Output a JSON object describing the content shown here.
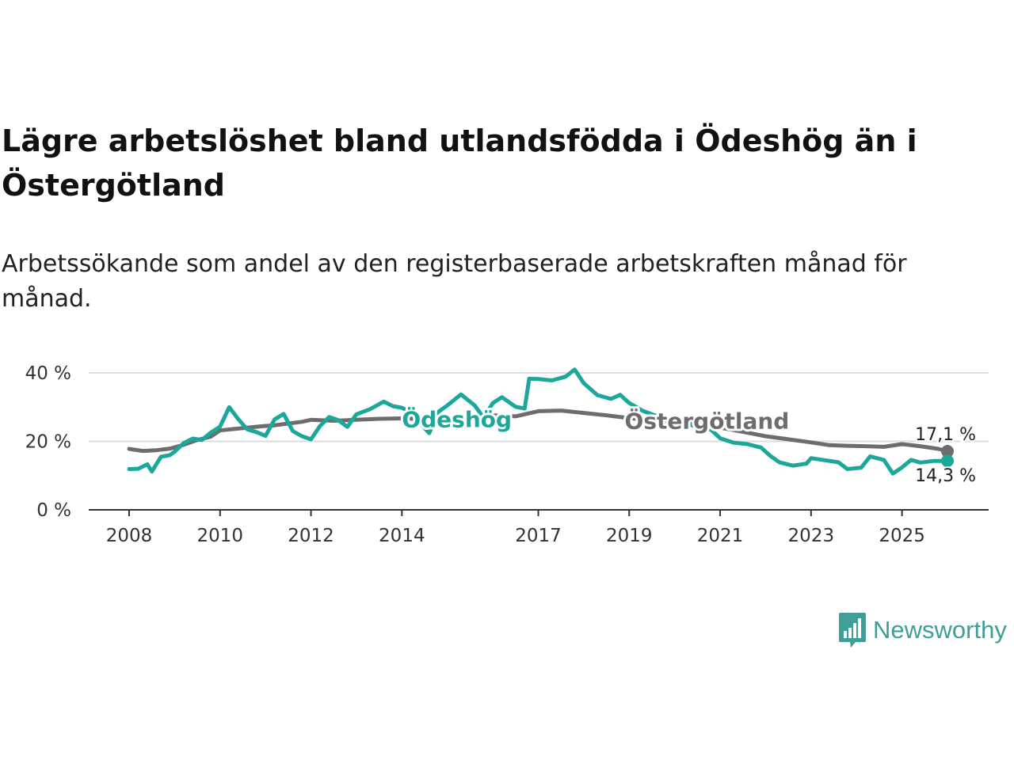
{
  "title": "Lägre arbetslöshet bland utlandsfödda i Ödeshög än i Östergötland",
  "subtitle": "Arbetssökande som andel av den registerbaserade arbetskraften månad för månad.",
  "brand": {
    "name": "Newsworthy",
    "color": "#3f9e97"
  },
  "chart_data": {
    "type": "line",
    "title": "Lägre arbetslöshet bland utlandsfödda i Ödeshög än i Östergötland",
    "xlabel": "",
    "ylabel": "",
    "xlim": [
      2008,
      2026
    ],
    "ylim": [
      0,
      40
    ],
    "y_ticks": [
      0,
      20,
      40
    ],
    "y_tick_labels": [
      "0 %",
      "20 %",
      "40 %"
    ],
    "x_ticks": [
      2008,
      2010,
      2012,
      2014,
      2017,
      2019,
      2021,
      2023,
      2025
    ],
    "x_tick_labels": [
      "2008",
      "2010",
      "2012",
      "2014",
      "2017",
      "2019",
      "2021",
      "2023",
      "2025"
    ],
    "grid": true,
    "series": [
      {
        "name": "Östergötland",
        "color": "#6d6d70",
        "end_label": "17,1 %",
        "points": [
          [
            2008.0,
            17.8
          ],
          [
            2008.3,
            17.2
          ],
          [
            2008.6,
            17.4
          ],
          [
            2008.9,
            17.9
          ],
          [
            2009.2,
            19.0
          ],
          [
            2009.5,
            20.4
          ],
          [
            2009.8,
            21.4
          ],
          [
            2010.0,
            23.2
          ],
          [
            2010.3,
            23.6
          ],
          [
            2010.6,
            24.0
          ],
          [
            2010.9,
            24.4
          ],
          [
            2011.2,
            24.7
          ],
          [
            2011.5,
            25.2
          ],
          [
            2011.8,
            25.7
          ],
          [
            2012.0,
            26.3
          ],
          [
            2012.5,
            26.0
          ],
          [
            2013.0,
            26.3
          ],
          [
            2013.5,
            26.6
          ],
          [
            2014.0,
            26.7
          ],
          [
            2014.5,
            26.5
          ],
          [
            2015.0,
            26.8
          ],
          [
            2015.5,
            27.2
          ],
          [
            2016.0,
            27.6
          ],
          [
            2016.5,
            27.3
          ],
          [
            2017.0,
            28.8
          ],
          [
            2017.5,
            29.0
          ],
          [
            2018.0,
            28.3
          ],
          [
            2018.5,
            27.6
          ],
          [
            2019.0,
            26.8
          ],
          [
            2019.5,
            26.2
          ],
          [
            2020.0,
            25.8
          ],
          [
            2020.5,
            25.1
          ],
          [
            2021.0,
            24.0
          ],
          [
            2021.5,
            22.8
          ],
          [
            2022.0,
            21.5
          ],
          [
            2022.5,
            20.6
          ],
          [
            2023.0,
            19.7
          ],
          [
            2023.4,
            18.9
          ],
          [
            2023.8,
            18.7
          ],
          [
            2024.2,
            18.6
          ],
          [
            2024.6,
            18.4
          ],
          [
            2025.0,
            19.2
          ],
          [
            2025.4,
            18.6
          ],
          [
            2025.8,
            17.8
          ],
          [
            2026.0,
            17.1
          ]
        ]
      },
      {
        "name": "Ödeshög",
        "color": "#1ba89b",
        "end_label": "14,3 %",
        "points": [
          [
            2008.0,
            11.9
          ],
          [
            2008.2,
            12.0
          ],
          [
            2008.4,
            13.3
          ],
          [
            2008.5,
            11.2
          ],
          [
            2008.7,
            15.5
          ],
          [
            2008.9,
            16.0
          ],
          [
            2009.0,
            17.0
          ],
          [
            2009.2,
            19.5
          ],
          [
            2009.4,
            20.8
          ],
          [
            2009.6,
            20.4
          ],
          [
            2009.8,
            22.6
          ],
          [
            2010.0,
            24.3
          ],
          [
            2010.2,
            30.0
          ],
          [
            2010.4,
            26.5
          ],
          [
            2010.6,
            23.5
          ],
          [
            2010.8,
            22.7
          ],
          [
            2011.0,
            21.6
          ],
          [
            2011.2,
            26.4
          ],
          [
            2011.4,
            28.0
          ],
          [
            2011.6,
            23.0
          ],
          [
            2011.8,
            21.5
          ],
          [
            2012.0,
            20.6
          ],
          [
            2012.2,
            24.5
          ],
          [
            2012.4,
            27.1
          ],
          [
            2012.6,
            26.2
          ],
          [
            2012.8,
            24.2
          ],
          [
            2013.0,
            27.9
          ],
          [
            2013.3,
            29.4
          ],
          [
            2013.6,
            31.6
          ],
          [
            2013.8,
            30.3
          ],
          [
            2014.0,
            29.8
          ],
          [
            2014.2,
            28.5
          ],
          [
            2014.4,
            25.3
          ],
          [
            2014.6,
            22.4
          ],
          [
            2014.8,
            28.6
          ],
          [
            2015.0,
            30.5
          ],
          [
            2015.3,
            33.7
          ],
          [
            2015.6,
            30.5
          ],
          [
            2015.8,
            26.9
          ],
          [
            2016.0,
            31.2
          ],
          [
            2016.2,
            32.9
          ],
          [
            2016.5,
            30.1
          ],
          [
            2016.7,
            29.6
          ],
          [
            2016.8,
            38.3
          ],
          [
            2017.0,
            38.2
          ],
          [
            2017.3,
            37.8
          ],
          [
            2017.6,
            38.9
          ],
          [
            2017.8,
            41.0
          ],
          [
            2018.0,
            37.0
          ],
          [
            2018.3,
            33.5
          ],
          [
            2018.6,
            32.4
          ],
          [
            2018.8,
            33.6
          ],
          [
            2019.0,
            31.2
          ],
          [
            2019.3,
            28.9
          ],
          [
            2019.6,
            27.4
          ],
          [
            2020.0,
            26.3
          ],
          [
            2020.4,
            24.6
          ],
          [
            2020.8,
            23.4
          ],
          [
            2021.0,
            20.9
          ],
          [
            2021.3,
            19.6
          ],
          [
            2021.6,
            19.2
          ],
          [
            2021.9,
            18.2
          ],
          [
            2022.1,
            15.8
          ],
          [
            2022.3,
            13.9
          ],
          [
            2022.6,
            12.9
          ],
          [
            2022.9,
            13.5
          ],
          [
            2023.0,
            15.1
          ],
          [
            2023.3,
            14.5
          ],
          [
            2023.6,
            13.9
          ],
          [
            2023.8,
            11.9
          ],
          [
            2024.1,
            12.3
          ],
          [
            2024.3,
            15.6
          ],
          [
            2024.6,
            14.6
          ],
          [
            2024.8,
            10.6
          ],
          [
            2025.0,
            12.4
          ],
          [
            2025.2,
            14.6
          ],
          [
            2025.4,
            13.8
          ],
          [
            2025.7,
            14.3
          ],
          [
            2026.0,
            14.3
          ]
        ]
      }
    ],
    "series_labels": [
      {
        "text": "Ödeshög",
        "x": 2014.0,
        "y": 26.5
      },
      {
        "text": "Östergötland",
        "x": 2018.9,
        "y": 26.0
      }
    ]
  }
}
